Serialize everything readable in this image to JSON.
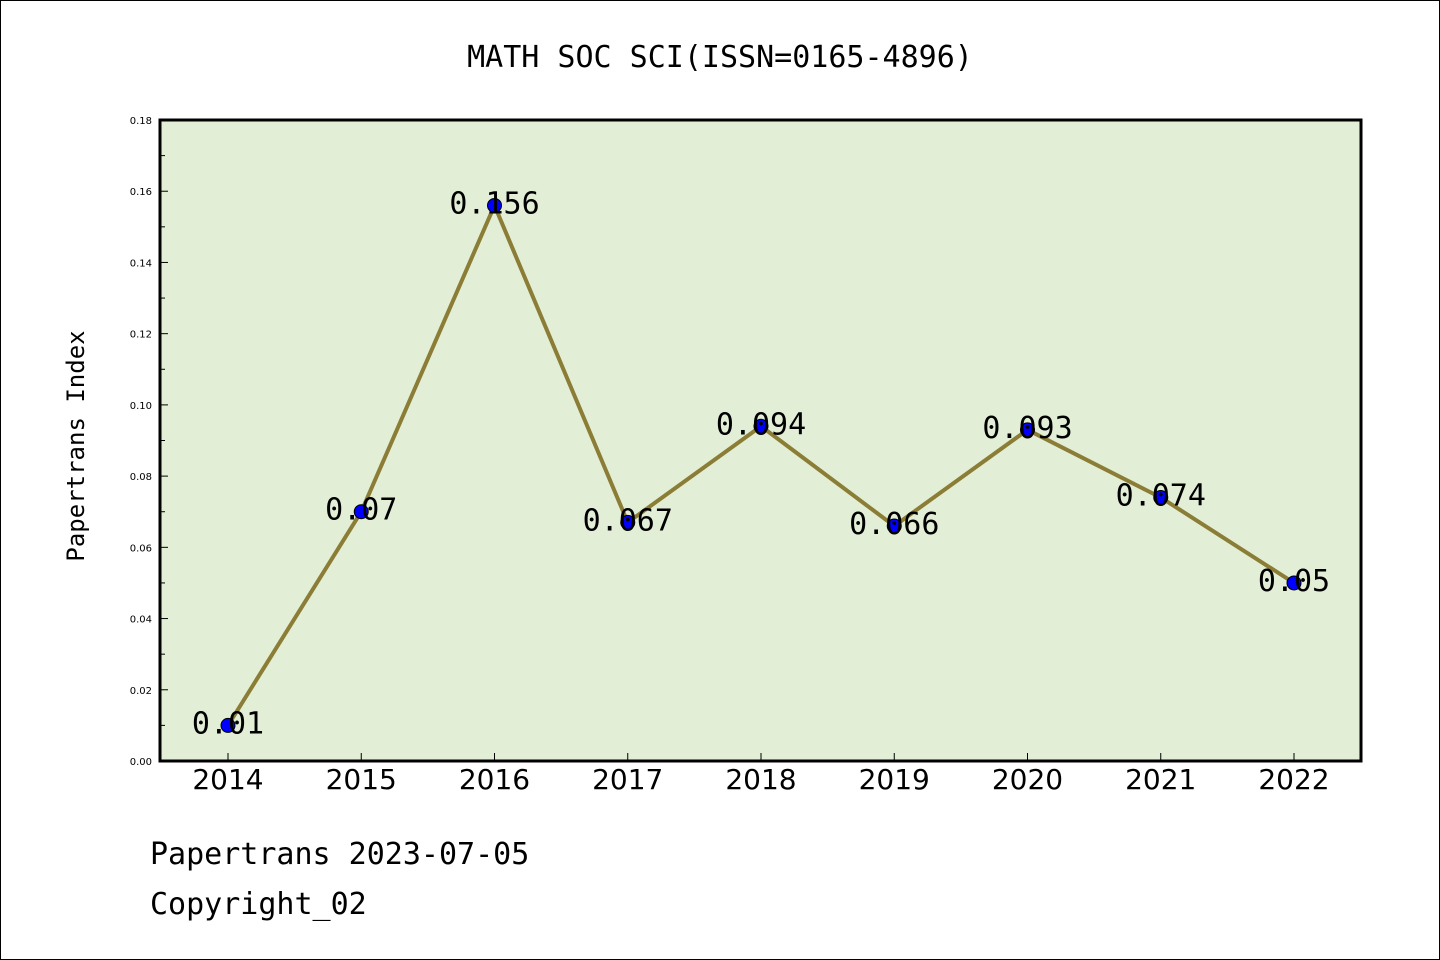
{
  "chart_data": {
    "type": "line",
    "title": "MATH SOC SCI(ISSN=0165-4896)",
    "xlabel": "",
    "ylabel": "Papertrans Index",
    "categories": [
      "2014",
      "2015",
      "2016",
      "2017",
      "2018",
      "2019",
      "2020",
      "2021",
      "2022"
    ],
    "values": [
      0.01,
      0.07,
      0.156,
      0.067,
      0.094,
      0.066,
      0.093,
      0.074,
      0.05
    ],
    "data_labels": [
      "0.01",
      "0.07",
      "0.156",
      "0.067",
      "0.094",
      "0.066",
      "0.093",
      "0.074",
      "0.05"
    ],
    "ylim": [
      0,
      0.18
    ],
    "yticks": [
      "0.00",
      "0.02",
      "0.04",
      "0.06",
      "0.08",
      "0.10",
      "0.12",
      "0.14",
      "0.16",
      "0.18"
    ],
    "grid": false,
    "colors": {
      "plot_background": "#e2efd6",
      "line": "#8b7d35",
      "marker": "#0000ff"
    }
  },
  "footer": {
    "line1": "Papertrans 2023-07-05",
    "line2": "Copyright_02"
  }
}
